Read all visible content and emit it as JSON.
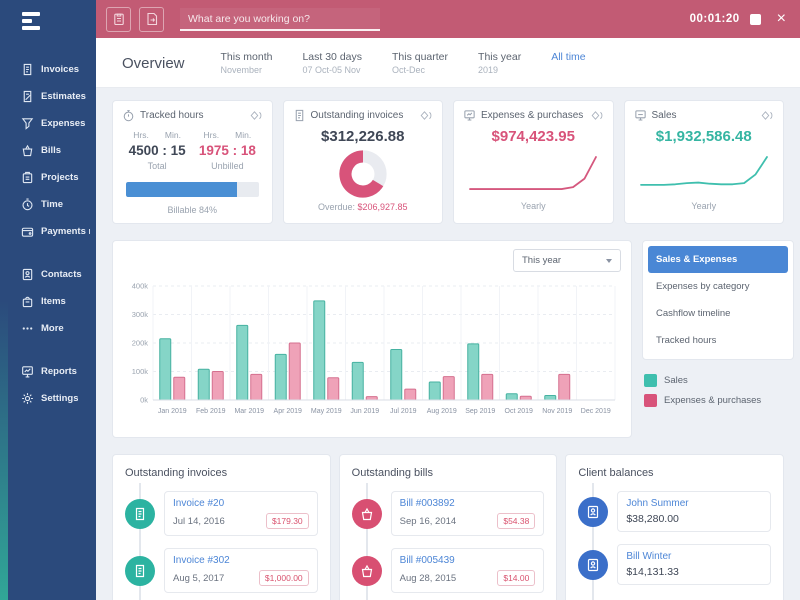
{
  "topbar": {
    "search_placeholder": "What are you working on?",
    "timer": "00:01:20",
    "close_glyph": "×"
  },
  "sidebar": {
    "groups": [
      [
        "Invoices",
        "Estimates",
        "Expenses",
        "Bills",
        "Projects",
        "Time",
        "Payments rece..."
      ],
      [
        "Contacts",
        "Items",
        "More"
      ],
      [
        "Reports",
        "Settings"
      ]
    ]
  },
  "overview": {
    "title": "Overview",
    "filters": [
      {
        "label": "This month",
        "sub": "November",
        "active": false
      },
      {
        "label": "Last 30 days",
        "sub": "07 Oct-05 Nov",
        "active": false
      },
      {
        "label": "This quarter",
        "sub": "Oct-Dec",
        "active": false
      },
      {
        "label": "This year",
        "sub": "2019",
        "active": false
      },
      {
        "label": "All time",
        "sub": "",
        "active": true
      }
    ]
  },
  "stat_cards": {
    "tracked_hours": {
      "title": "Tracked hours",
      "hrs_label": "Hrs.",
      "min_label": "Min.",
      "total_value": "4500 : 15",
      "total_label": "Total",
      "unbilled_value": "1975 : 18",
      "unbilled_label": "Unbilled",
      "billable_percent": 84,
      "billable_label": "Billable 84%"
    },
    "outstanding_invoices": {
      "title": "Outstanding invoices",
      "amount": "$312,226.88",
      "overdue_label": "Overdue:",
      "overdue_amount": "$206,927.85"
    },
    "expenses": {
      "title": "Expenses & purchases",
      "amount": "$974,423.95",
      "period": "Yearly"
    },
    "sales": {
      "title": "Sales",
      "amount": "$1,932,586.48",
      "period": "Yearly"
    }
  },
  "chart_panel": {
    "dropdown_value": "This year",
    "tabs": [
      "Sales & Expenses",
      "Expenses by category",
      "Cashflow timeline",
      "Tracked hours"
    ],
    "active_tab": "Sales & Expenses",
    "legend": [
      {
        "label": "Sales",
        "color": "#3fbfae"
      },
      {
        "label": "Expenses & purchases",
        "color": "#d8537a"
      }
    ]
  },
  "chart_data": [
    {
      "id": "sales-expenses-bar",
      "type": "bar",
      "title": "Sales & Expenses",
      "categories": [
        "Jan 2019",
        "Feb 2019",
        "Mar 2019",
        "Apr 2019",
        "May 2019",
        "Jun 2019",
        "Jul 2019",
        "Aug 2019",
        "Sep 2019",
        "Oct 2019",
        "Nov 2019",
        "Dec 2019"
      ],
      "series": [
        {
          "name": "Sales",
          "fill": "#85d5c7",
          "stroke": "#46b2a1",
          "values": [
            215000,
            108000,
            262000,
            160000,
            348000,
            132000,
            177000,
            63000,
            197000,
            22000,
            16000,
            0
          ]
        },
        {
          "name": "Expenses & purchases",
          "fill": "#efa2b8",
          "stroke": "#d5708f",
          "values": [
            80000,
            100000,
            90000,
            200000,
            78000,
            12000,
            38000,
            82000,
            90000,
            13000,
            90000,
            0
          ]
        }
      ],
      "ylim": [
        0,
        400000
      ],
      "yticks": [
        {
          "label": "0k",
          "value": 0
        },
        {
          "label": "100k",
          "value": 100000
        },
        {
          "label": "200k",
          "value": 200000
        },
        {
          "label": "300k",
          "value": 300000
        },
        {
          "label": "400k",
          "value": 400000
        }
      ],
      "grid": true,
      "legend_position": "right"
    },
    {
      "id": "outstanding-donut",
      "type": "pie",
      "labels": [
        "Overdue",
        "Remaining"
      ],
      "values": [
        206927.85,
        105299.03
      ],
      "colors": [
        "#d8537a",
        "#e9ebf0"
      ]
    },
    {
      "id": "expenses-spark",
      "type": "line",
      "name": "Expenses & purchases yearly trend",
      "color": "#d5587e",
      "values": [
        6,
        6,
        6,
        6,
        6,
        6,
        6,
        6,
        6,
        9,
        22,
        55
      ]
    },
    {
      "id": "sales-spark",
      "type": "line",
      "name": "Sales yearly trend",
      "color": "#3fbfae",
      "values": [
        14,
        14,
        14,
        15,
        17,
        18,
        16,
        15,
        15,
        17,
        32,
        62
      ]
    }
  ],
  "bottom_cards": [
    {
      "title": "Outstanding invoices",
      "accent": "#2cb3a1",
      "items": [
        {
          "title": "Invoice #20",
          "date": "Jul 14, 2016",
          "badge": "$179.30"
        },
        {
          "title": "Invoice #302",
          "date": "Aug 5, 2017",
          "badge": "$1,000.00"
        }
      ]
    },
    {
      "title": "Outstanding bills",
      "accent": "#d84f72",
      "items": [
        {
          "title": "Bill #003892",
          "date": "Sep 16, 2014",
          "badge": "$54.38"
        },
        {
          "title": "Bill #005439",
          "date": "Aug 28, 2015",
          "badge": "$14.00"
        }
      ]
    },
    {
      "title": "Client balances",
      "accent": "#3b6fc9",
      "items": [
        {
          "title": "John Summer",
          "amount": "$38,280.00"
        },
        {
          "title": "Bill Winter",
          "amount": "$14,131.33"
        }
      ]
    }
  ],
  "colors": {
    "topbar": "#c25b74",
    "sidebar": "#2b4a7c",
    "accent_pink": "#d8537a",
    "accent_teal": "#35b5a2",
    "link_blue": "#4d86d6",
    "progress_blue": "#4a8fd4"
  }
}
